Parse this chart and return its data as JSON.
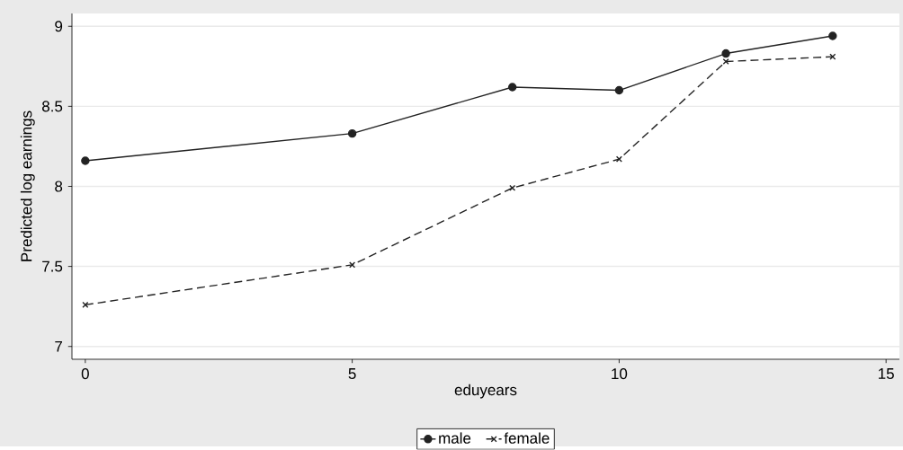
{
  "chart_data": {
    "type": "line",
    "xlabel": "eduyears",
    "ylabel": "Predicted log earnings",
    "x": [
      0,
      5,
      8,
      10,
      12,
      14
    ],
    "series": [
      {
        "name": "male",
        "color": "#222222",
        "values": [
          8.16,
          8.33,
          8.62,
          8.6,
          8.83,
          8.94
        ],
        "marker": "circle",
        "line_style": "solid"
      },
      {
        "name": "female",
        "color": "#222222",
        "values": [
          7.26,
          7.51,
          7.99,
          8.17,
          8.78,
          8.81
        ],
        "marker": "cross",
        "line_style": "dashed"
      }
    ],
    "xlim": [
      -0.25,
      15.25
    ],
    "ylim": [
      6.92,
      9.08
    ],
    "xticks": [
      0,
      5,
      10,
      15
    ],
    "yticks": [
      7,
      7.5,
      8,
      8.5,
      9
    ],
    "grid": "y",
    "legend": "bottom"
  }
}
